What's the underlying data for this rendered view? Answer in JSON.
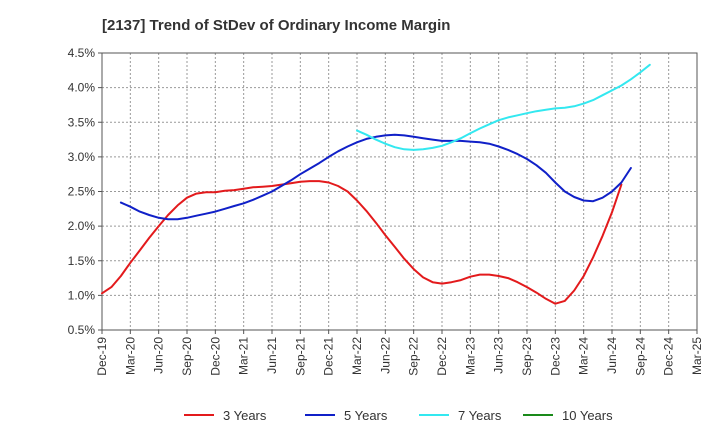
{
  "chart_data": {
    "type": "line",
    "title": "[2137]  Trend of StDev of Ordinary Income Margin",
    "xlabel": "",
    "ylabel": "",
    "x_tick_labels": [
      "Dec-19",
      "Mar-20",
      "Jun-20",
      "Sep-20",
      "Dec-20",
      "Mar-21",
      "Jun-21",
      "Sep-21",
      "Dec-21",
      "Mar-22",
      "Jun-22",
      "Sep-22",
      "Dec-22",
      "Mar-23",
      "Jun-23",
      "Sep-23",
      "Dec-23",
      "Mar-24",
      "Jun-24",
      "Sep-24",
      "Dec-24",
      "Mar-25"
    ],
    "y_tick_labels": [
      "0.5%",
      "1.0%",
      "1.5%",
      "2.0%",
      "2.5%",
      "3.0%",
      "3.5%",
      "4.0%",
      "4.5%"
    ],
    "ylim": [
      0.5,
      4.5
    ],
    "y_unit": "%",
    "grid": true,
    "legend_position": "bottom",
    "series": [
      {
        "name": "3 Years",
        "color": "#e31a1c",
        "x_start": 0,
        "values": [
          1.03,
          1.12,
          1.28,
          1.47,
          1.65,
          1.83,
          2.0,
          2.16,
          2.3,
          2.41,
          2.47,
          2.49,
          2.49,
          2.51,
          2.52,
          2.54,
          2.56,
          2.57,
          2.58,
          2.6,
          2.62,
          2.64,
          2.65,
          2.65,
          2.63,
          2.58,
          2.5,
          2.37,
          2.22,
          2.05,
          1.87,
          1.7,
          1.53,
          1.38,
          1.26,
          1.19,
          1.17,
          1.19,
          1.22,
          1.27,
          1.3,
          1.3,
          1.28,
          1.25,
          1.19,
          1.12,
          1.04,
          0.95,
          0.88,
          0.92,
          1.07,
          1.28,
          1.55,
          1.86,
          2.2,
          2.6
        ]
      },
      {
        "name": "5 Years",
        "color": "#1020c8",
        "x_start": 2,
        "values": [
          2.34,
          2.28,
          2.21,
          2.16,
          2.12,
          2.1,
          2.1,
          2.12,
          2.15,
          2.18,
          2.21,
          2.25,
          2.29,
          2.33,
          2.38,
          2.44,
          2.5,
          2.58,
          2.66,
          2.75,
          2.83,
          2.91,
          3.0,
          3.08,
          3.15,
          3.21,
          3.26,
          3.29,
          3.31,
          3.32,
          3.31,
          3.29,
          3.27,
          3.25,
          3.23,
          3.23,
          3.23,
          3.22,
          3.21,
          3.19,
          3.15,
          3.1,
          3.04,
          2.97,
          2.88,
          2.77,
          2.63,
          2.5,
          2.42,
          2.37,
          2.36,
          2.41,
          2.5,
          2.63,
          2.84
        ]
      },
      {
        "name": "7 Years",
        "color": "#33e8f0",
        "x_start": 27,
        "values": [
          3.38,
          3.32,
          3.25,
          3.19,
          3.14,
          3.11,
          3.1,
          3.11,
          3.13,
          3.16,
          3.21,
          3.27,
          3.34,
          3.41,
          3.47,
          3.53,
          3.57,
          3.6,
          3.63,
          3.66,
          3.68,
          3.7,
          3.71,
          3.73,
          3.77,
          3.82,
          3.89,
          3.96,
          4.03,
          4.12,
          4.22,
          4.33
        ]
      },
      {
        "name": "10 Years",
        "color": "#1a8a1a",
        "x_start": 0,
        "values": []
      }
    ]
  }
}
